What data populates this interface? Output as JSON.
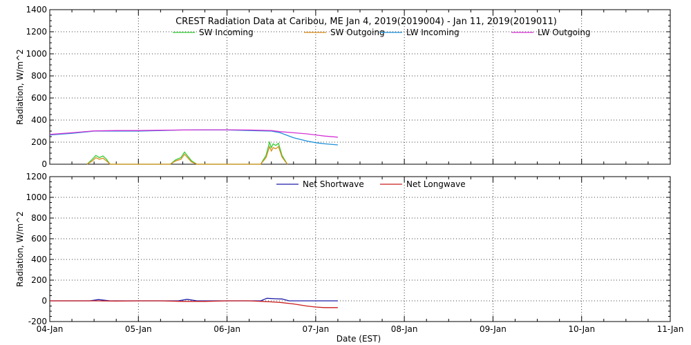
{
  "title": "CREST Radiation Data at Caribou, ME   Jan  4, 2019(2019004) - Jan 11, 2019(2019011)",
  "xlabel": "Date (EST)",
  "x_ticks": [
    "04-Jan",
    "05-Jan",
    "06-Jan",
    "07-Jan",
    "08-Jan",
    "09-Jan",
    "10-Jan",
    "11-Jan"
  ],
  "colors": {
    "sw_incoming": "#33cc33",
    "sw_outgoing": "#d98c1a",
    "lw_incoming": "#1a8fd9",
    "lw_outgoing": "#d633d6",
    "net_shortwave": "#1a1aa6",
    "net_longwave": "#cc1a1a"
  },
  "chart_data": [
    {
      "type": "line",
      "ylabel": "Radiation, W/m^2",
      "ylim": [
        0,
        1400
      ],
      "yticks": [
        0,
        200,
        400,
        600,
        800,
        1000,
        1200,
        1400
      ],
      "xlim": [
        0,
        7
      ],
      "x_unit": "days since 04-Jan 00:00 EST",
      "grid": true,
      "legend": "top",
      "series": [
        {
          "name": "SW Incoming",
          "x": [
            0.42,
            0.48,
            0.52,
            0.56,
            0.6,
            0.64,
            0.68,
            1.36,
            1.42,
            1.48,
            1.52,
            1.56,
            1.6,
            1.66,
            2.38,
            2.44,
            2.48,
            2.5,
            2.52,
            2.55,
            2.58,
            2.62,
            2.68
          ],
          "y": [
            0,
            45,
            80,
            60,
            75,
            45,
            0,
            0,
            40,
            60,
            110,
            70,
            30,
            0,
            0,
            80,
            200,
            150,
            185,
            170,
            190,
            80,
            0
          ]
        },
        {
          "name": "SW Outgoing",
          "x": [
            0.42,
            0.48,
            0.52,
            0.56,
            0.6,
            0.64,
            0.68,
            1.36,
            1.42,
            1.48,
            1.52,
            1.56,
            1.6,
            1.66,
            2.38,
            2.44,
            2.48,
            2.5,
            2.52,
            2.55,
            2.58,
            2.62,
            2.68
          ],
          "y": [
            0,
            30,
            60,
            45,
            55,
            30,
            0,
            0,
            30,
            45,
            90,
            55,
            20,
            0,
            0,
            60,
            160,
            120,
            150,
            140,
            160,
            65,
            0
          ]
        },
        {
          "name": "LW Incoming",
          "x": [
            0,
            0.25,
            0.5,
            0.75,
            1.0,
            1.25,
            1.5,
            1.75,
            2.0,
            2.25,
            2.5,
            2.6,
            2.75,
            2.9,
            3.0,
            3.1,
            3.25
          ],
          "y": [
            265,
            280,
            300,
            300,
            300,
            305,
            310,
            310,
            310,
            305,
            300,
            285,
            240,
            210,
            195,
            185,
            175
          ]
        },
        {
          "name": "LW Outgoing",
          "x": [
            0,
            0.25,
            0.5,
            0.75,
            1.0,
            1.25,
            1.5,
            1.75,
            2.0,
            2.25,
            2.5,
            2.6,
            2.75,
            2.9,
            3.0,
            3.1,
            3.25
          ],
          "y": [
            270,
            285,
            302,
            305,
            305,
            308,
            310,
            312,
            312,
            310,
            305,
            295,
            285,
            275,
            265,
            255,
            245
          ]
        }
      ]
    },
    {
      "type": "line",
      "ylabel": "Radiation, W/m^2",
      "ylim": [
        -200,
        1200
      ],
      "yticks": [
        -200,
        0,
        200,
        400,
        600,
        800,
        1000,
        1200
      ],
      "xlim": [
        0,
        7
      ],
      "x_unit": "days since 04-Jan 00:00 EST",
      "grid": true,
      "legend": "top",
      "series": [
        {
          "name": "Net Shortwave",
          "x": [
            0,
            0.45,
            0.55,
            0.68,
            1.0,
            1.45,
            1.55,
            1.66,
            2.0,
            2.38,
            2.45,
            2.55,
            2.62,
            2.7,
            3.25
          ],
          "y": [
            0,
            0,
            12,
            0,
            0,
            0,
            15,
            0,
            0,
            0,
            25,
            20,
            18,
            0,
            0
          ]
        },
        {
          "name": "Net Longwave",
          "x": [
            0,
            0.25,
            0.5,
            0.75,
            1.0,
            1.25,
            1.5,
            1.75,
            2.0,
            2.25,
            2.5,
            2.6,
            2.75,
            2.9,
            3.0,
            3.1,
            3.25
          ],
          "y": [
            0,
            0,
            0,
            -2,
            0,
            0,
            -5,
            -5,
            0,
            0,
            -10,
            -15,
            -30,
            -50,
            -60,
            -65,
            -65
          ]
        }
      ]
    }
  ]
}
